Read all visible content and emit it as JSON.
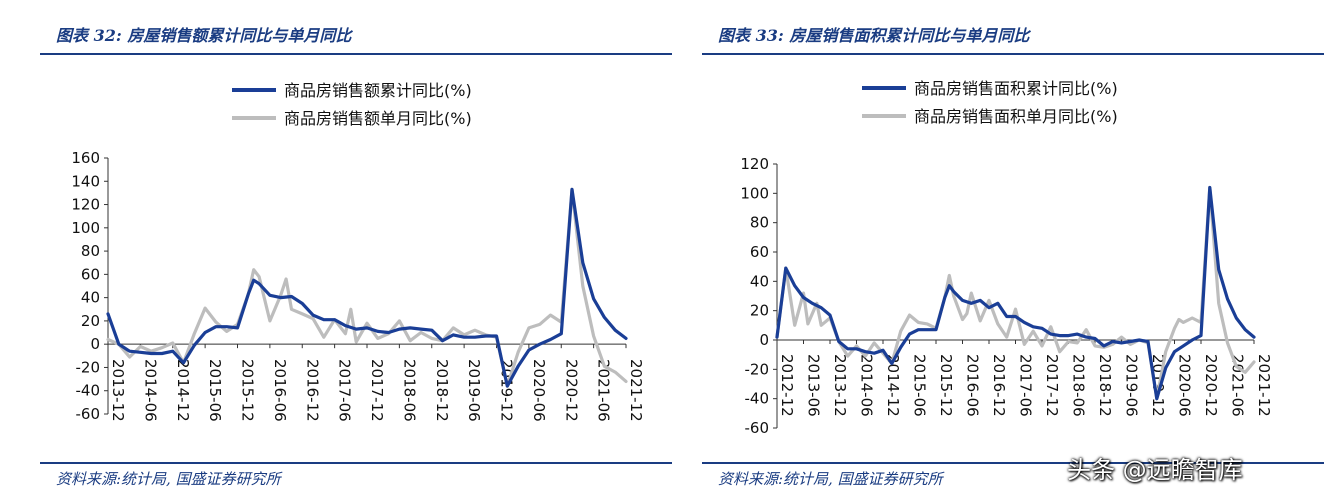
{
  "left_panel": {
    "title": "图表 32:  房屋销售额累计同比与单月同比",
    "source": "资料来源:统计局, 国盛证券研究所"
  },
  "right_panel": {
    "title": "图表 33:  房屋销售面积累计同比与单月同比",
    "source": "资料来源:统计局, 国盛证券研究所"
  },
  "watermark": "头条 @远瞻智库",
  "colors": {
    "cumulative": "#1a3e96",
    "monthly": "#bdbdbd",
    "brand": "#1a3c82"
  },
  "chart_data": [
    {
      "type": "line",
      "title": "",
      "ylim": [
        -60,
        160
      ],
      "yticks": [
        -60,
        -40,
        -20,
        0,
        20,
        40,
        60,
        80,
        100,
        120,
        140,
        160
      ],
      "x_tick_labels": [
        "2013-12",
        "2014-06",
        "2014-12",
        "2015-06",
        "2015-12",
        "2016-06",
        "2016-12",
        "2017-06",
        "2017-12",
        "2018-06",
        "2018-12",
        "2019-06",
        "2019-12",
        "2020-06",
        "2020-12",
        "2021-06",
        "2021-12"
      ],
      "legend_position": "top-center",
      "grid": false,
      "series": [
        {
          "name": "商品房销售额累计同比(%)",
          "points": [
            [
              "2013-12",
              26
            ],
            [
              "2014-02",
              0
            ],
            [
              "2014-04",
              -6
            ],
            [
              "2014-06",
              -7
            ],
            [
              "2014-08",
              -8
            ],
            [
              "2014-10",
              -8
            ],
            [
              "2014-12",
              -6
            ],
            [
              "2015-02",
              -16
            ],
            [
              "2015-04",
              -1
            ],
            [
              "2015-06",
              10
            ],
            [
              "2015-08",
              15
            ],
            [
              "2015-10",
              15
            ],
            [
              "2015-12",
              14
            ],
            [
              "2016-02",
              43
            ],
            [
              "2016-03",
              55
            ],
            [
              "2016-04",
              52
            ],
            [
              "2016-06",
              42
            ],
            [
              "2016-08",
              40
            ],
            [
              "2016-10",
              41
            ],
            [
              "2016-12",
              35
            ],
            [
              "2017-02",
              25
            ],
            [
              "2017-04",
              21
            ],
            [
              "2017-06",
              21
            ],
            [
              "2017-08",
              16
            ],
            [
              "2017-10",
              13
            ],
            [
              "2017-12",
              14
            ],
            [
              "2018-02",
              11
            ],
            [
              "2018-04",
              10
            ],
            [
              "2018-06",
              13
            ],
            [
              "2018-08",
              14
            ],
            [
              "2018-10",
              13
            ],
            [
              "2018-12",
              12
            ],
            [
              "2019-02",
              3
            ],
            [
              "2019-04",
              8
            ],
            [
              "2019-06",
              6
            ],
            [
              "2019-08",
              6
            ],
            [
              "2019-10",
              7
            ],
            [
              "2019-12",
              7
            ],
            [
              "2020-02",
              -36
            ],
            [
              "2020-04",
              -19
            ],
            [
              "2020-06",
              -5
            ],
            [
              "2020-08",
              0
            ],
            [
              "2020-10",
              4
            ],
            [
              "2020-12",
              9
            ],
            [
              "2021-02",
              133
            ],
            [
              "2021-04",
              70
            ],
            [
              "2021-06",
              39
            ],
            [
              "2021-08",
              23
            ],
            [
              "2021-10",
              12
            ],
            [
              "2021-12",
              5
            ]
          ]
        },
        {
          "name": "商品房销售额单月同比(%)",
          "points": [
            [
              "2013-12",
              4
            ],
            [
              "2014-02",
              0
            ],
            [
              "2014-04",
              -11
            ],
            [
              "2014-06",
              -2
            ],
            [
              "2014-08",
              -6
            ],
            [
              "2014-10",
              -3
            ],
            [
              "2014-12",
              1
            ],
            [
              "2015-02",
              -16
            ],
            [
              "2015-04",
              9
            ],
            [
              "2015-06",
              31
            ],
            [
              "2015-08",
              19
            ],
            [
              "2015-10",
              11
            ],
            [
              "2015-12",
              17
            ],
            [
              "2016-02",
              43
            ],
            [
              "2016-03",
              64
            ],
            [
              "2016-04",
              58
            ],
            [
              "2016-06",
              20
            ],
            [
              "2016-08",
              42
            ],
            [
              "2016-09",
              56
            ],
            [
              "2016-10",
              30
            ],
            [
              "2016-12",
              26
            ],
            [
              "2017-02",
              22
            ],
            [
              "2017-04",
              6
            ],
            [
              "2017-06",
              21
            ],
            [
              "2017-08",
              9
            ],
            [
              "2017-09",
              30
            ],
            [
              "2017-10",
              2
            ],
            [
              "2017-12",
              18
            ],
            [
              "2018-02",
              5
            ],
            [
              "2018-04",
              9
            ],
            [
              "2018-06",
              20
            ],
            [
              "2018-08",
              3
            ],
            [
              "2018-10",
              10
            ],
            [
              "2018-12",
              5
            ],
            [
              "2019-02",
              3
            ],
            [
              "2019-04",
              14
            ],
            [
              "2019-06",
              8
            ],
            [
              "2019-08",
              12
            ],
            [
              "2019-10",
              8
            ],
            [
              "2019-12",
              6
            ],
            [
              "2020-02",
              -36
            ],
            [
              "2020-04",
              -7
            ],
            [
              "2020-06",
              14
            ],
            [
              "2020-08",
              17
            ],
            [
              "2020-10",
              25
            ],
            [
              "2020-12",
              19
            ],
            [
              "2021-02",
              133
            ],
            [
              "2021-04",
              50
            ],
            [
              "2021-06",
              7
            ],
            [
              "2021-08",
              -19
            ],
            [
              "2021-10",
              -24
            ],
            [
              "2021-12",
              -32
            ]
          ]
        }
      ]
    },
    {
      "type": "line",
      "title": "",
      "ylim": [
        -60,
        120
      ],
      "yticks": [
        -60,
        -40,
        -20,
        0,
        20,
        40,
        60,
        80,
        100,
        120
      ],
      "x_tick_labels": [
        "2012-12",
        "2013-06",
        "2013-12",
        "2014-06",
        "2014-12",
        "2015-06",
        "2015-12",
        "2016-06",
        "2016-12",
        "2017-06",
        "2017-12",
        "2018-06",
        "2018-12",
        "2019-06",
        "2019-12",
        "2020-06",
        "2020-12",
        "2021-06",
        "2021-12"
      ],
      "legend_position": "top-center",
      "grid": false,
      "series": [
        {
          "name": "商品房销售面积累计同比(%)",
          "points": [
            [
              "2012-12",
              2
            ],
            [
              "2013-02",
              49
            ],
            [
              "2013-04",
              37
            ],
            [
              "2013-06",
              29
            ],
            [
              "2013-08",
              25
            ],
            [
              "2013-10",
              22
            ],
            [
              "2013-12",
              17
            ],
            [
              "2014-02",
              -1
            ],
            [
              "2014-04",
              -6
            ],
            [
              "2014-06",
              -6
            ],
            [
              "2014-08",
              -8
            ],
            [
              "2014-10",
              -9
            ],
            [
              "2014-12",
              -7
            ],
            [
              "2015-02",
              -16
            ],
            [
              "2015-04",
              -5
            ],
            [
              "2015-06",
              4
            ],
            [
              "2015-08",
              7
            ],
            [
              "2015-10",
              7
            ],
            [
              "2015-12",
              7
            ],
            [
              "2016-02",
              29
            ],
            [
              "2016-03",
              37
            ],
            [
              "2016-04",
              33
            ],
            [
              "2016-06",
              27
            ],
            [
              "2016-08",
              25
            ],
            [
              "2016-10",
              27
            ],
            [
              "2016-12",
              22
            ],
            [
              "2017-02",
              25
            ],
            [
              "2017-04",
              16
            ],
            [
              "2017-06",
              16
            ],
            [
              "2017-08",
              12
            ],
            [
              "2017-10",
              9
            ],
            [
              "2017-12",
              8
            ],
            [
              "2018-02",
              4
            ],
            [
              "2018-04",
              3
            ],
            [
              "2018-06",
              3
            ],
            [
              "2018-08",
              4
            ],
            [
              "2018-10",
              2
            ],
            [
              "2018-12",
              1
            ],
            [
              "2019-02",
              -4
            ],
            [
              "2019-04",
              -1
            ],
            [
              "2019-06",
              -2
            ],
            [
              "2019-08",
              -1
            ],
            [
              "2019-10",
              0
            ],
            [
              "2019-12",
              -1
            ],
            [
              "2020-02",
              -40
            ],
            [
              "2020-04",
              -19
            ],
            [
              "2020-06",
              -8
            ],
            [
              "2020-08",
              -4
            ],
            [
              "2020-10",
              0
            ],
            [
              "2020-12",
              3
            ],
            [
              "2021-02",
              104
            ],
            [
              "2021-04",
              48
            ],
            [
              "2021-06",
              28
            ],
            [
              "2021-08",
              15
            ],
            [
              "2021-10",
              7
            ],
            [
              "2021-12",
              2
            ]
          ]
        },
        {
          "name": "商品房销售面积单月同比(%)",
          "points": [
            [
              "2012-12",
              2
            ],
            [
              "2013-02",
              49
            ],
            [
              "2013-04",
              10
            ],
            [
              "2013-06",
              32
            ],
            [
              "2013-07",
              11
            ],
            [
              "2013-09",
              25
            ],
            [
              "2013-10",
              10
            ],
            [
              "2013-12",
              15
            ],
            [
              "2014-02",
              -1
            ],
            [
              "2014-04",
              -11
            ],
            [
              "2014-06",
              -4
            ],
            [
              "2014-08",
              -11
            ],
            [
              "2014-10",
              -2
            ],
            [
              "2014-12",
              -9
            ],
            [
              "2015-02",
              -16
            ],
            [
              "2015-04",
              6
            ],
            [
              "2015-06",
              17
            ],
            [
              "2015-08",
              12
            ],
            [
              "2015-10",
              11
            ],
            [
              "2015-12",
              8
            ],
            [
              "2016-02",
              29
            ],
            [
              "2016-03",
              44
            ],
            [
              "2016-04",
              30
            ],
            [
              "2016-06",
              14
            ],
            [
              "2016-07",
              18
            ],
            [
              "2016-08",
              32
            ],
            [
              "2016-10",
              13
            ],
            [
              "2016-12",
              27
            ],
            [
              "2017-02",
              11
            ],
            [
              "2017-04",
              2
            ],
            [
              "2017-06",
              21
            ],
            [
              "2017-08",
              -3
            ],
            [
              "2017-10",
              6
            ],
            [
              "2017-12",
              -4
            ],
            [
              "2018-02",
              9
            ],
            [
              "2018-04",
              -8
            ],
            [
              "2018-06",
              -1
            ],
            [
              "2018-08",
              -2
            ],
            [
              "2018-10",
              7
            ],
            [
              "2018-12",
              -4
            ],
            [
              "2019-02",
              -5
            ],
            [
              "2019-04",
              -3
            ],
            [
              "2019-06",
              2
            ],
            [
              "2019-08",
              -3
            ],
            [
              "2019-10",
              0
            ],
            [
              "2019-12",
              -2
            ],
            [
              "2020-02",
              -40
            ],
            [
              "2020-04",
              -8
            ],
            [
              "2020-06",
              8
            ],
            [
              "2020-07",
              14
            ],
            [
              "2020-08",
              12
            ],
            [
              "2020-10",
              15
            ],
            [
              "2020-12",
              12
            ],
            [
              "2021-02",
              104
            ],
            [
              "2021-04",
              25
            ],
            [
              "2021-06",
              -2
            ],
            [
              "2021-08",
              -18
            ],
            [
              "2021-10",
              -22
            ],
            [
              "2021-12",
              -15
            ]
          ]
        }
      ]
    }
  ]
}
